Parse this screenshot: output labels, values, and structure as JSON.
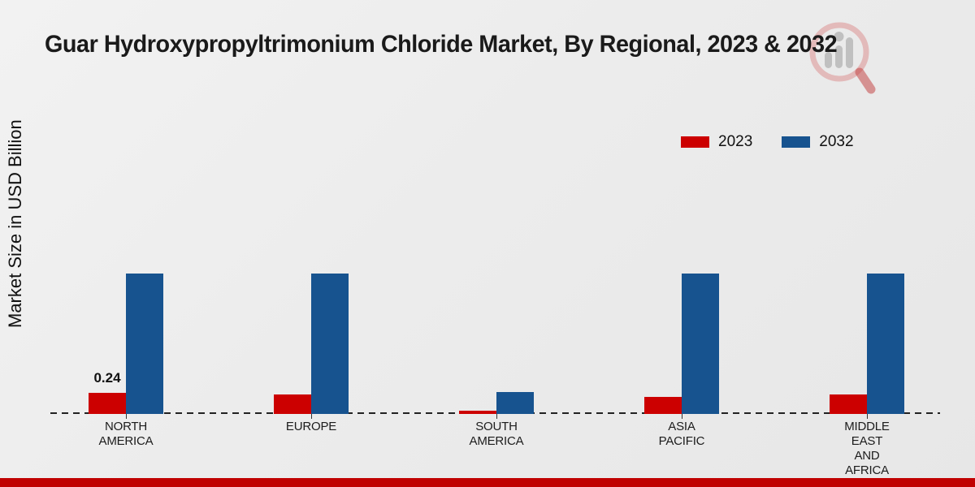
{
  "title": "Guar Hydroxypropyltrimonium Chloride Market, By Regional, 2023 & 2032",
  "y_axis_label": "Market Size in USD Billion",
  "legend": {
    "items": [
      {
        "label": "2023",
        "color": "#cc0000"
      },
      {
        "label": "2032",
        "color": "#17538f"
      }
    ]
  },
  "colors": {
    "series_2023": "#cc0000",
    "series_2032": "#17538f",
    "footer_band": "#c00000",
    "baseline": "#222222",
    "background": "#ececec"
  },
  "logo": {
    "name": "magnifier-bar-chart-watermark-logo"
  },
  "chart_data": {
    "type": "bar",
    "categories": [
      "NORTH AMERICA",
      "EUROPE",
      "SOUTH AMERICA",
      "ASIA PACIFIC",
      "MIDDLE EAST AND AFRICA"
    ],
    "category_lines": [
      [
        "NORTH",
        "AMERICA"
      ],
      [
        "EUROPE"
      ],
      [
        "SOUTH",
        "AMERICA"
      ],
      [
        "ASIA",
        "PACIFIC"
      ],
      [
        "MIDDLE",
        "EAST",
        "AND",
        "AFRICA"
      ]
    ],
    "series": [
      {
        "name": "2023",
        "color": "#cc0000",
        "values": [
          0.24,
          0.22,
          0.04,
          0.19,
          0.22
        ],
        "data_labels": [
          "0.24",
          "",
          "",
          "",
          ""
        ]
      },
      {
        "name": "2032",
        "color": "#17538f",
        "values": [
          1.6,
          1.6,
          0.25,
          1.6,
          1.6
        ],
        "data_labels": [
          "",
          "",
          "",
          "",
          ""
        ]
      }
    ],
    "title": "Guar Hydroxypropyltrimonium Chloride Market, By Regional, 2023 & 2032",
    "xlabel": "",
    "ylabel": "Market Size in USD Billion",
    "ylim": [
      0,
      1.85
    ],
    "grid": false,
    "legend_position": "top-right",
    "baseline_style": "dashed",
    "y_ticks_visible": false
  }
}
